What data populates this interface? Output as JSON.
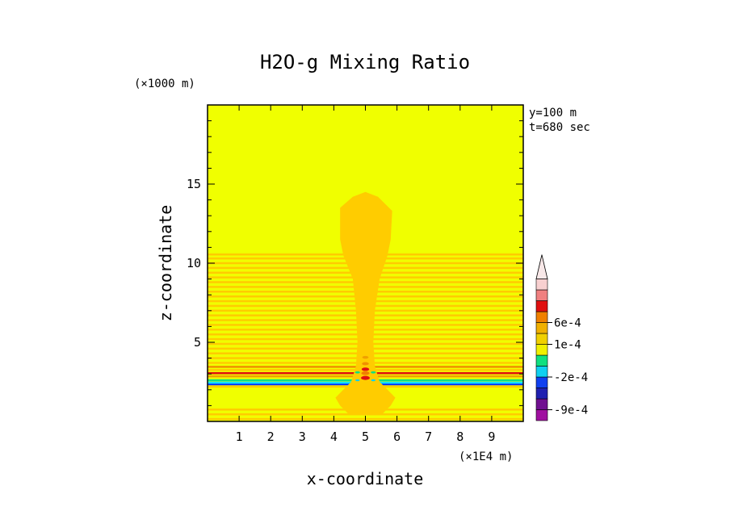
{
  "chart_data": {
    "type": "heatmap",
    "title": "H2O-g Mixing Ratio",
    "xlabel": "x-coordinate",
    "ylabel": "z-coordinate",
    "x_unit": "(×1E4 m)",
    "y_unit": "(×1000 m)",
    "xlim": [
      0,
      10
    ],
    "ylim": [
      0,
      20
    ],
    "x_ticks": [
      "1",
      "2",
      "3",
      "4",
      "5",
      "6",
      "7",
      "8",
      "9"
    ],
    "y_ticks": [
      "5",
      "10",
      "15"
    ],
    "annotations": [
      "y=100 m",
      "t=680 sec"
    ],
    "colorbar": {
      "labels": [
        "6e-4",
        "1e-4",
        "-2e-4",
        "-9e-4"
      ],
      "colors": [
        "#a010a0",
        "#701090",
        "#2020b0",
        "#1040f0",
        "#10d0f0",
        "#10e080",
        "#f0f000",
        "#f0d000",
        "#f0b000",
        "#f08000",
        "#e01010",
        "#f08080",
        "#f8d0d0"
      ]
    },
    "field": {
      "background": "#f0ff00",
      "plume_color": "#ffcc00",
      "bands": [
        {
          "z": 0.15,
          "color": "#ffcc00"
        },
        {
          "z": 0.45,
          "color": "#ffcc00"
        },
        {
          "z": 0.75,
          "color": "#ffcc00"
        },
        {
          "z": 2.2,
          "color": "#ffcc00"
        },
        {
          "z": 2.35,
          "color": "#0030ff"
        },
        {
          "z": 2.45,
          "color": "#10e0ff"
        },
        {
          "z": 2.6,
          "color": "#10e080"
        },
        {
          "z": 2.85,
          "color": "#f0a000"
        },
        {
          "z": 3.05,
          "color": "#e01010"
        },
        {
          "z": 3.25,
          "color": "#ffcc00"
        },
        {
          "z": 3.45,
          "color": "#f09000"
        },
        {
          "z": 3.7,
          "color": "#ffcc00"
        },
        {
          "z": 4.0,
          "color": "#ffcc00"
        },
        {
          "z": 4.3,
          "color": "#ffcc00"
        },
        {
          "z": 4.6,
          "color": "#ffcc00"
        },
        {
          "z": 4.9,
          "color": "#ffcc00"
        },
        {
          "z": 5.2,
          "color": "#ffcc00"
        },
        {
          "z": 5.5,
          "color": "#ffcc00"
        },
        {
          "z": 5.8,
          "color": "#ffcc00"
        },
        {
          "z": 6.1,
          "color": "#ffcc00"
        },
        {
          "z": 6.4,
          "color": "#ffcc00"
        },
        {
          "z": 6.7,
          "color": "#ffcc00"
        },
        {
          "z": 7.0,
          "color": "#ffcc00"
        },
        {
          "z": 7.3,
          "color": "#ffcc00"
        },
        {
          "z": 7.6,
          "color": "#ffcc00"
        },
        {
          "z": 7.9,
          "color": "#ffcc00"
        },
        {
          "z": 8.2,
          "color": "#ffcc00"
        },
        {
          "z": 8.5,
          "color": "#ffcc00"
        },
        {
          "z": 8.8,
          "color": "#ffcc00"
        },
        {
          "z": 9.1,
          "color": "#ffcc00"
        },
        {
          "z": 9.4,
          "color": "#ffcc00"
        },
        {
          "z": 9.7,
          "color": "#ffcc00"
        },
        {
          "z": 10.0,
          "color": "#ffcc00"
        },
        {
          "z": 10.3,
          "color": "#ffcc00"
        },
        {
          "z": 10.55,
          "color": "#ffcc00"
        }
      ],
      "plume_outline": [
        [
          4.45,
          0.5
        ],
        [
          4.2,
          1.0
        ],
        [
          4.05,
          1.5
        ],
        [
          4.3,
          2.0
        ],
        [
          4.55,
          2.5
        ],
        [
          4.7,
          3.5
        ],
        [
          4.75,
          5.0
        ],
        [
          4.7,
          7.0
        ],
        [
          4.6,
          9.0
        ],
        [
          4.3,
          10.5
        ],
        [
          4.2,
          11.5
        ],
        [
          4.2,
          13.5
        ],
        [
          4.6,
          14.2
        ],
        [
          5.0,
          14.5
        ],
        [
          5.4,
          14.2
        ],
        [
          5.85,
          13.3
        ],
        [
          5.8,
          11.5
        ],
        [
          5.7,
          10.5
        ],
        [
          5.45,
          9.0
        ],
        [
          5.3,
          7.0
        ],
        [
          5.25,
          5.0
        ],
        [
          5.3,
          3.5
        ],
        [
          5.45,
          2.5
        ],
        [
          5.7,
          2.0
        ],
        [
          5.95,
          1.5
        ],
        [
          5.8,
          1.0
        ],
        [
          5.55,
          0.5
        ]
      ],
      "core_cells": [
        {
          "x": 5.0,
          "z": 2.75,
          "r": 0.14,
          "color": "#e01010"
        },
        {
          "x": 5.0,
          "z": 3.05,
          "r": 0.13,
          "color": "#f08000"
        },
        {
          "x": 5.0,
          "z": 3.3,
          "r": 0.12,
          "color": "#e01010"
        },
        {
          "x": 5.0,
          "z": 3.65,
          "r": 0.11,
          "color": "#f09000"
        },
        {
          "x": 5.0,
          "z": 4.05,
          "r": 0.1,
          "color": "#f0a000"
        },
        {
          "x": 4.75,
          "z": 3.1,
          "r": 0.08,
          "color": "#10e080"
        },
        {
          "x": 5.25,
          "z": 3.1,
          "r": 0.08,
          "color": "#10e080"
        },
        {
          "x": 4.75,
          "z": 2.6,
          "r": 0.07,
          "color": "#10d0f0"
        },
        {
          "x": 5.25,
          "z": 2.6,
          "r": 0.07,
          "color": "#10d0f0"
        }
      ]
    }
  }
}
